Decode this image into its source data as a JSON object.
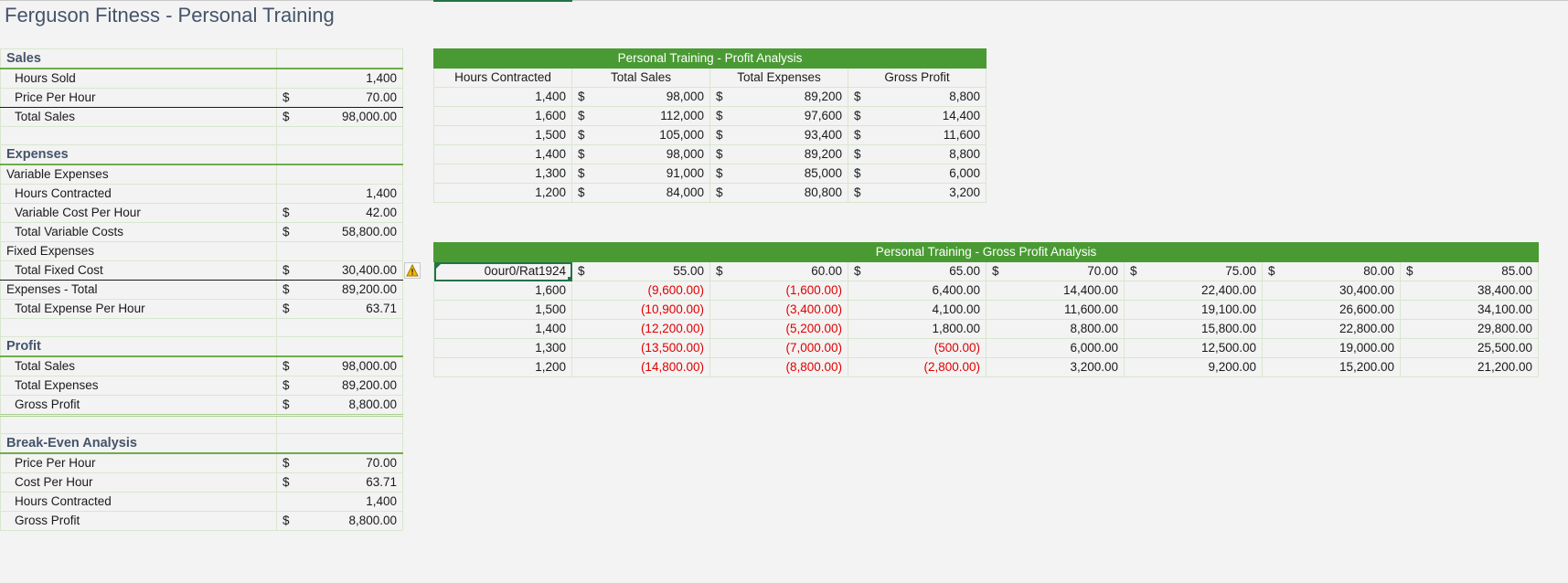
{
  "title": "Ferguson Fitness - Personal Training",
  "left": {
    "sales_header": "Sales",
    "hours_sold_label": "Hours Sold",
    "hours_sold": "1,400",
    "price_per_hour_label": "Price Per Hour",
    "price_per_hour": "70.00",
    "total_sales_label": "Total Sales",
    "total_sales": "98,000.00",
    "expenses_header": "Expenses",
    "variable_expenses_label": "Variable Expenses",
    "hours_contracted_label": "Hours Contracted",
    "hours_contracted": "1,400",
    "variable_cost_label": "Variable Cost Per Hour",
    "variable_cost": "42.00",
    "total_variable_label": "Total Variable Costs",
    "total_variable": "58,800.00",
    "fixed_expenses_label": "Fixed Expenses",
    "total_fixed_label": "Total Fixed Cost",
    "total_fixed": "30,400.00",
    "expenses_total_label": "Expenses - Total",
    "expenses_total": "89,200.00",
    "total_expense_hour_label": "Total Expense Per Hour",
    "total_expense_hour": "63.71",
    "profit_header": "Profit",
    "p_total_sales_label": "Total Sales",
    "p_total_sales": "98,000.00",
    "p_total_expenses_label": "Total Expenses",
    "p_total_expenses": "89,200.00",
    "p_gross_profit_label": "Gross Profit",
    "p_gross_profit": "8,800.00",
    "breakeven_header": "Break-Even Analysis",
    "b_price_label": "Price Per Hour",
    "b_price": "70.00",
    "b_cost_label": "Cost Per Hour",
    "b_cost": "63.71",
    "b_hours_label": "Hours Contracted",
    "b_hours": "1,400",
    "b_gross_label": "Gross Profit",
    "b_gross": "8,800.00",
    "currency": "$"
  },
  "profit_analysis": {
    "title": "Personal Training - Profit Analysis",
    "columns": [
      "Hours Contracted",
      "Total Sales",
      "Total Expenses",
      "Gross Profit"
    ],
    "rows": [
      [
        "1,400",
        "98,000",
        "89,200",
        "8,800"
      ],
      [
        "1,600",
        "112,000",
        "97,600",
        "14,400"
      ],
      [
        "1,500",
        "105,000",
        "93,400",
        "11,600"
      ],
      [
        "1,400",
        "98,000",
        "89,200",
        "8,800"
      ],
      [
        "1,300",
        "91,000",
        "85,000",
        "6,000"
      ],
      [
        "1,200",
        "84,000",
        "80,800",
        "3,200"
      ]
    ]
  },
  "gross_profit_analysis": {
    "title": "Personal Training - Gross Profit Analysis",
    "corner_cell": "0our0/Rat1924",
    "prices": [
      "55.00",
      "60.00",
      "65.00",
      "70.00",
      "75.00",
      "80.00",
      "85.00"
    ],
    "rows": [
      {
        "hours": "1,600",
        "values": [
          "(9,600.00)",
          "(1,600.00)",
          "6,400.00",
          "14,400.00",
          "22,400.00",
          "30,400.00",
          "38,400.00"
        ]
      },
      {
        "hours": "1,500",
        "values": [
          "(10,900.00)",
          "(3,400.00)",
          "4,100.00",
          "11,600.00",
          "19,100.00",
          "26,600.00",
          "34,100.00"
        ]
      },
      {
        "hours": "1,400",
        "values": [
          "(12,200.00)",
          "(5,200.00)",
          "1,800.00",
          "8,800.00",
          "15,800.00",
          "22,800.00",
          "29,800.00"
        ]
      },
      {
        "hours": "1,300",
        "values": [
          "(13,500.00)",
          "(7,000.00)",
          "(500.00)",
          "6,000.00",
          "12,500.00",
          "19,000.00",
          "25,500.00"
        ]
      },
      {
        "hours": "1,200",
        "values": [
          "(14,800.00)",
          "(8,800.00)",
          "(2,800.00)",
          "3,200.00",
          "9,200.00",
          "15,200.00",
          "21,200.00"
        ]
      }
    ]
  },
  "colors": {
    "accent_green": "#4a9a33",
    "negative": "#e00000",
    "header_text": "#44546a"
  }
}
